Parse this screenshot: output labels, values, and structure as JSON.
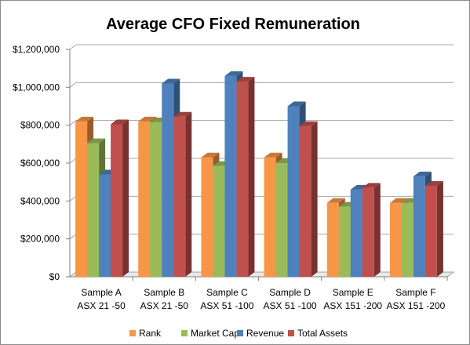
{
  "chart_data": {
    "type": "bar",
    "title": "Average CFO Fixed Remuneration",
    "xlabel": "",
    "ylabel": "",
    "ylim": [
      0,
      1200000
    ],
    "y_ticks": [
      "$0",
      "$200,000",
      "$400,000",
      "$600,000",
      "$800,000",
      "$1,000,000",
      "$1,200,000"
    ],
    "y_tick_values": [
      0,
      200000,
      400000,
      600000,
      800000,
      1000000,
      1200000
    ],
    "categories": [
      [
        "Sample A",
        "ASX 21 -50"
      ],
      [
        "Sample B",
        "ASX 21 -50"
      ],
      [
        "Sample C",
        "ASX 51 -100"
      ],
      [
        "Sample D",
        "ASX 51 -100"
      ],
      [
        "Sample E",
        "ASX 151 -200"
      ],
      [
        "Sample F",
        "ASX 151 -200"
      ]
    ],
    "series": [
      {
        "name": "Rank",
        "color": "#F79646",
        "values": [
          820000,
          820000,
          630000,
          630000,
          390000,
          390000
        ]
      },
      {
        "name": "Market Cap",
        "color": "#9BBB59",
        "values": [
          705000,
          815000,
          585000,
          600000,
          370000,
          390000
        ]
      },
      {
        "name": "Revenue",
        "color": "#4F81BD",
        "values": [
          540000,
          1020000,
          1060000,
          900000,
          460000,
          530000
        ]
      },
      {
        "name": "Total Assets",
        "color": "#C0504D",
        "values": [
          805000,
          845000,
          1030000,
          795000,
          470000,
          480000
        ]
      }
    ],
    "grid": true,
    "legend_position": "bottom",
    "style": "3d-clustered-column"
  }
}
